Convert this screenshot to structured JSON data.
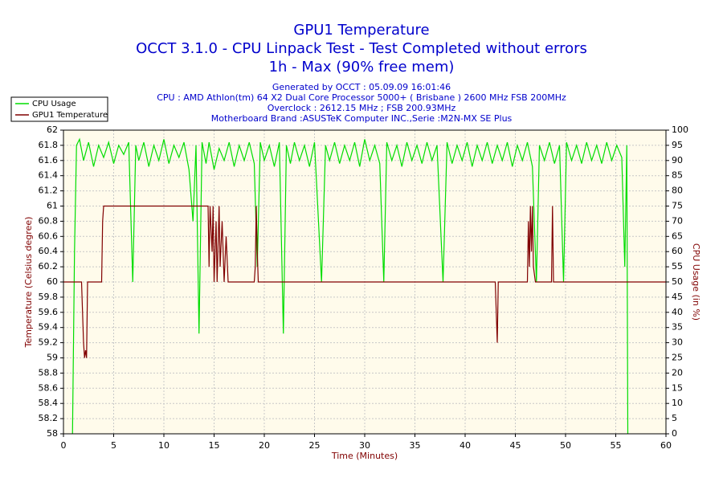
{
  "chart_data": {
    "type": "line",
    "title": "GPU1 Temperature",
    "subtitle": [
      "OCCT 3.1.0 - CPU Linpack Test - Test Completed without errors",
      "1h - Max (90% free mem)"
    ],
    "info": [
      "Generated by OCCT : 05.09.09 16:01:46",
      "CPU : AMD Athlon(tm) 64 X2 Dual Core Processor 5000+ ( Brisbane ) 2600 MHz FSB 200MHz",
      "Overclock : 2612.15 MHz ; FSB 200.93MHz",
      "Motherboard Brand :ASUSTeK Computer INC.,Serie :M2N-MX SE Plus"
    ],
    "xlabel": "Time (Minutes)",
    "ylabel": "Temperature (Celsius degree)",
    "y2label": "CPU Usage (in %)",
    "xlim": [
      0,
      60
    ],
    "xticks": [
      0,
      5,
      10,
      15,
      20,
      25,
      30,
      35,
      40,
      45,
      50,
      55,
      60
    ],
    "ylim": [
      58,
      62
    ],
    "yticks": [
      58,
      58.2,
      58.4,
      58.6,
      58.8,
      59,
      59.2,
      59.4,
      59.6,
      59.8,
      60,
      60.2,
      60.4,
      60.6,
      60.8,
      61,
      61.2,
      61.4,
      61.6,
      61.8,
      62
    ],
    "y2lim": [
      0,
      100
    ],
    "y2ticks": [
      0,
      5,
      10,
      15,
      20,
      25,
      30,
      35,
      40,
      45,
      50,
      55,
      60,
      65,
      70,
      75,
      80,
      85,
      90,
      95,
      100
    ],
    "grid": true,
    "legend": "top-left",
    "series": [
      {
        "name": "CPU Usage",
        "color": "#00dd00",
        "axis": "y2",
        "x": [
          0.9,
          1.1,
          1.3,
          1.6,
          2.0,
          2.5,
          3.0,
          3.5,
          4.0,
          4.5,
          5.0,
          5.5,
          6.0,
          6.5,
          6.9,
          7.2,
          7.5,
          8.0,
          8.5,
          9.0,
          9.5,
          10.0,
          10.5,
          11.0,
          11.5,
          12.0,
          12.5,
          12.9,
          13.2,
          13.5,
          13.8,
          14.2,
          14.5,
          15.0,
          15.5,
          16.0,
          16.5,
          17.0,
          17.5,
          18.0,
          18.5,
          19.0,
          19.3,
          19.6,
          20.0,
          20.5,
          21.0,
          21.5,
          21.9,
          22.2,
          22.6,
          23.0,
          23.5,
          24.0,
          24.5,
          25.0,
          25.7,
          26.1,
          26.5,
          27.0,
          27.5,
          28.0,
          28.5,
          29.0,
          29.5,
          30.0,
          30.5,
          31.0,
          31.5,
          31.9,
          32.2,
          32.7,
          33.2,
          33.7,
          34.2,
          34.7,
          35.2,
          35.7,
          36.2,
          36.7,
          37.2,
          37.8,
          38.2,
          38.7,
          39.2,
          39.7,
          40.2,
          40.7,
          41.2,
          41.7,
          42.2,
          42.7,
          43.2,
          43.7,
          44.2,
          44.7,
          45.2,
          45.7,
          46.2,
          46.7,
          47.1,
          47.4,
          47.9,
          48.4,
          48.9,
          49.4,
          49.8,
          50.1,
          50.6,
          51.1,
          51.6,
          52.1,
          52.6,
          53.1,
          53.6,
          54.1,
          54.6,
          55.1,
          55.6,
          55.9,
          56.1,
          56.2
        ],
        "values": [
          0,
          60,
          95,
          97,
          90,
          96,
          88,
          95,
          91,
          96,
          89,
          95,
          92,
          96,
          50,
          95,
          90,
          96,
          88,
          95,
          90,
          97,
          89,
          95,
          91,
          96,
          87,
          70,
          95,
          33,
          96,
          89,
          96,
          87,
          94,
          90,
          96,
          88,
          95,
          90,
          96,
          89,
          55,
          96,
          90,
          95,
          88,
          96,
          33,
          95,
          89,
          96,
          90,
          95,
          88,
          96,
          50,
          95,
          90,
          96,
          89,
          95,
          90,
          96,
          88,
          97,
          90,
          95,
          89,
          50,
          96,
          90,
          95,
          88,
          96,
          90,
          95,
          89,
          96,
          90,
          95,
          50,
          96,
          89,
          95,
          90,
          96,
          88,
          95,
          90,
          96,
          89,
          95,
          90,
          96,
          88,
          95,
          90,
          96,
          88,
          50,
          95,
          90,
          96,
          89,
          95,
          50,
          96,
          90,
          95,
          89,
          96,
          90,
          95,
          89,
          96,
          90,
          95,
          91,
          55,
          95,
          0
        ]
      },
      {
        "name": "GPU1 Temperature",
        "color": "#800000",
        "axis": "y",
        "x": [
          0,
          1.8,
          2.0,
          2.1,
          2.2,
          2.3,
          2.4,
          3.8,
          3.9,
          4.0,
          14.4,
          14.5,
          14.6,
          14.8,
          14.9,
          15.0,
          15.2,
          15.3,
          15.5,
          15.6,
          15.8,
          16.0,
          16.2,
          16.4,
          16.6,
          19.0,
          19.1,
          19.2,
          19.3,
          19.4,
          43.0,
          43.1,
          43.2,
          43.3,
          46.2,
          46.3,
          46.4,
          46.5,
          46.6,
          46.7,
          46.8,
          47.0,
          48.6,
          48.7,
          48.8,
          60
        ],
        "values": [
          60,
          60,
          59.2,
          59.0,
          59.1,
          59.0,
          60,
          60,
          60.8,
          61,
          61,
          60.2,
          61,
          60.4,
          61,
          60,
          60.8,
          60,
          61,
          60.2,
          60.8,
          60,
          60.6,
          60,
          60,
          60,
          60.2,
          61,
          60.4,
          60,
          60,
          59.6,
          59.2,
          60,
          60,
          60.8,
          60.2,
          61,
          60.4,
          61,
          60.2,
          60,
          60,
          61,
          60,
          60
        ]
      }
    ]
  }
}
